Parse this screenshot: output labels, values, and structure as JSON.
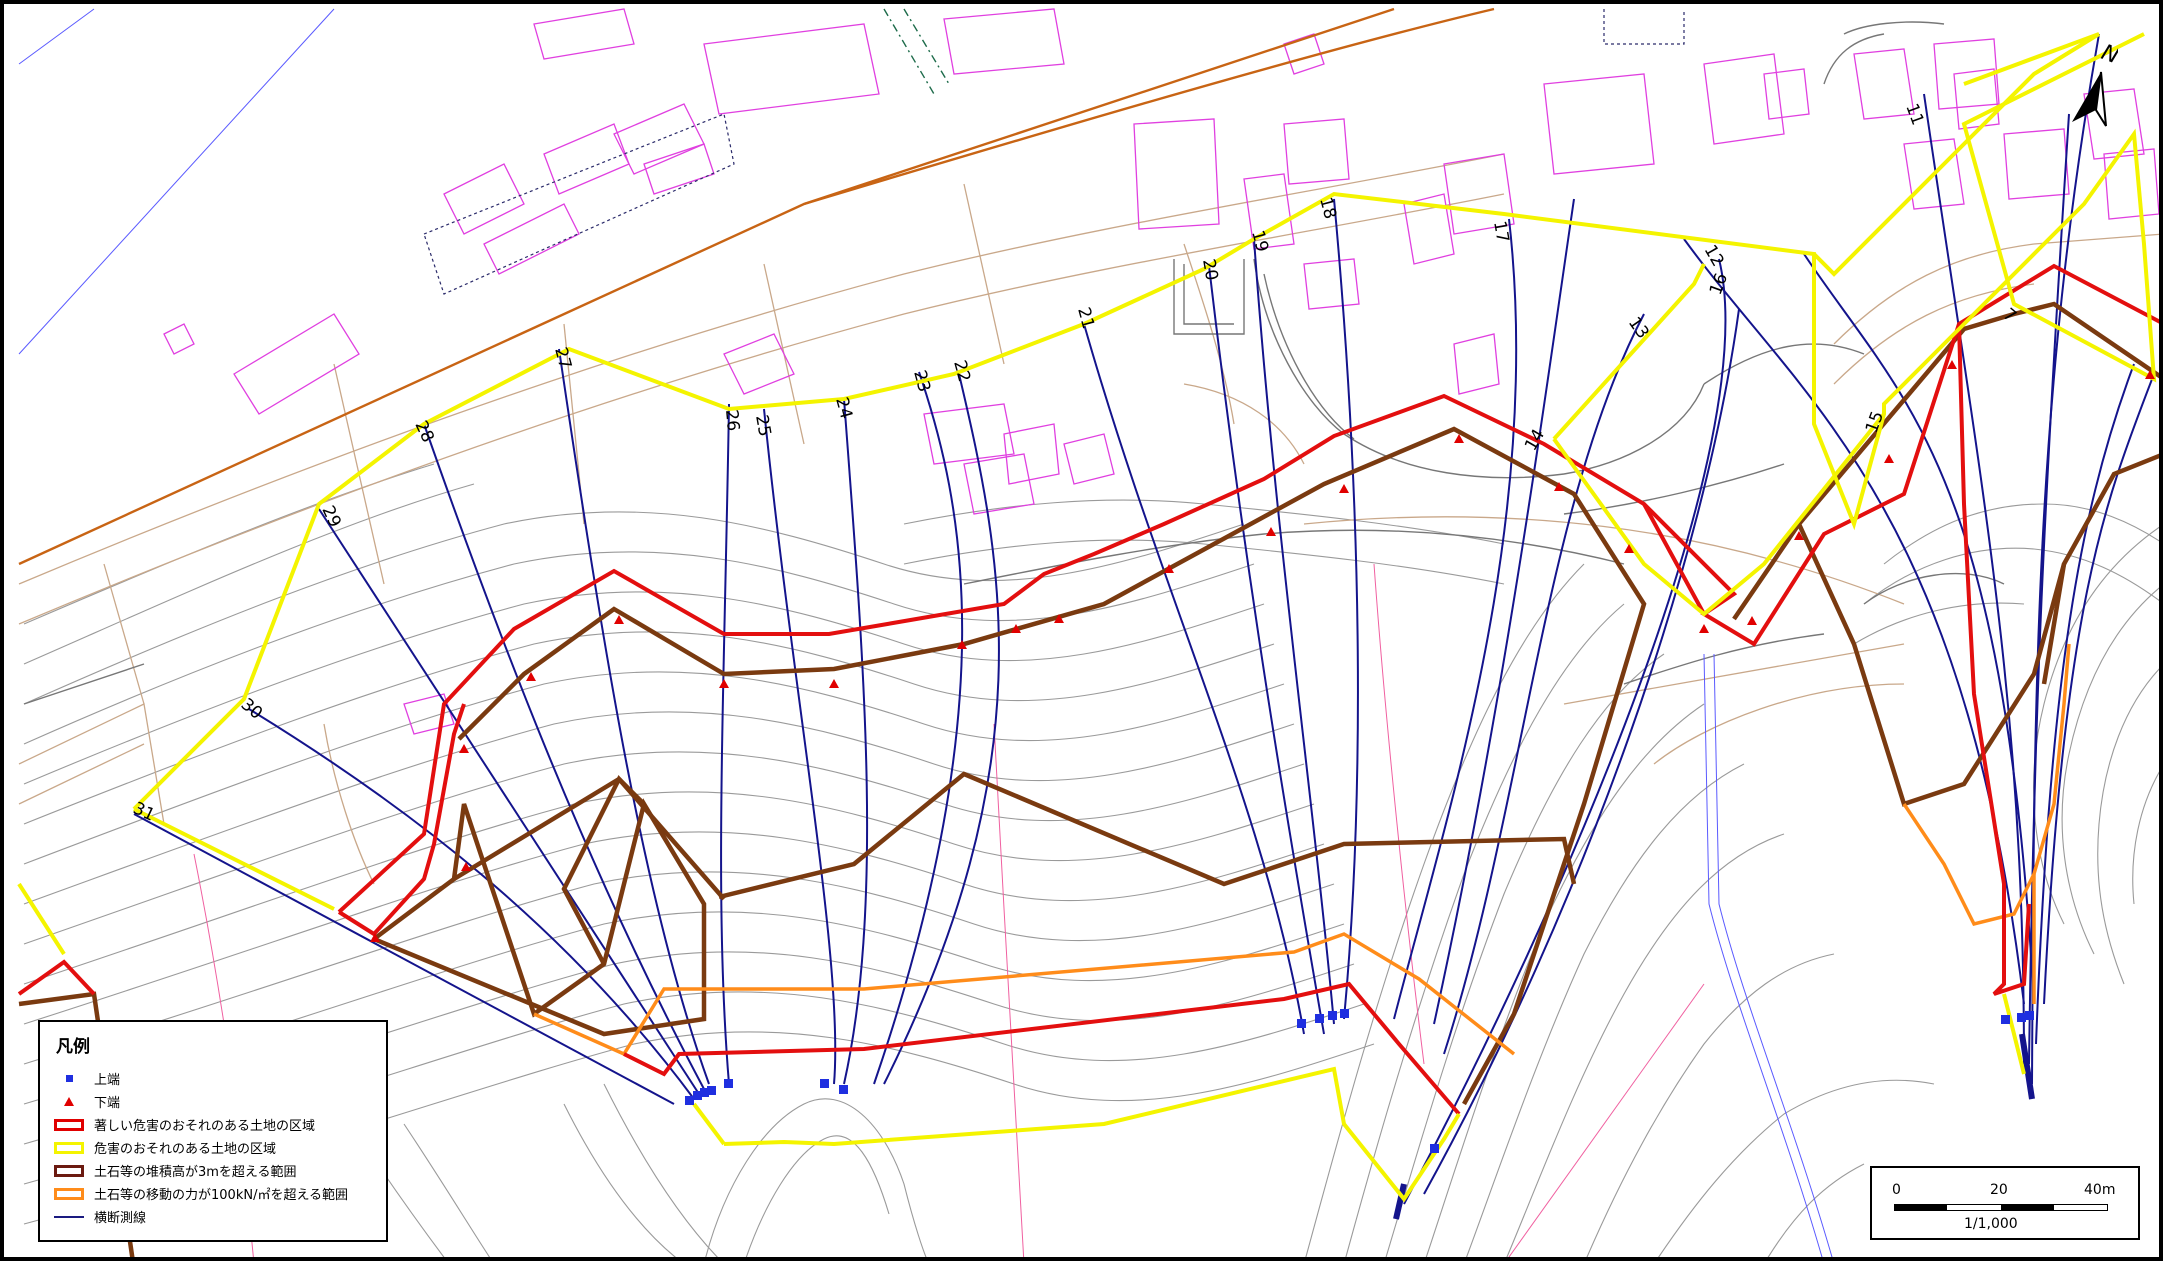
{
  "legend": {
    "title": "凡例",
    "items": [
      {
        "symbol": "square",
        "label": "上端",
        "color": "#1f2fe0"
      },
      {
        "symbol": "triangle",
        "label": "下端",
        "color": "#e00000"
      },
      {
        "symbol": "rect",
        "label": "著しい危害のおそれのある土地の区域",
        "color": "#e00000"
      },
      {
        "symbol": "rect",
        "label": "危害のおそれのある土地の区域",
        "color": "#f4f400"
      },
      {
        "symbol": "rect",
        "label": "土石等の堆積高が3mを超える範囲",
        "color": "#6b1a10"
      },
      {
        "symbol": "rect",
        "label": "土石等の移動の力が100kN/㎡を超える範囲",
        "color": "#ff8c1a"
      },
      {
        "symbol": "line",
        "label": "横断測線",
        "color": "#1a1a80"
      }
    ]
  },
  "scale": {
    "zero": "0",
    "mid": "20",
    "end": "40m",
    "ratio": "1/1,000"
  },
  "north_label": "N",
  "section_labels": [
    "7",
    "11",
    "12",
    "13",
    "14",
    "15",
    "16",
    "17",
    "18",
    "19",
    "20",
    "21",
    "22",
    "23",
    "24",
    "25",
    "26",
    "27",
    "28",
    "29",
    "30",
    "31"
  ]
}
